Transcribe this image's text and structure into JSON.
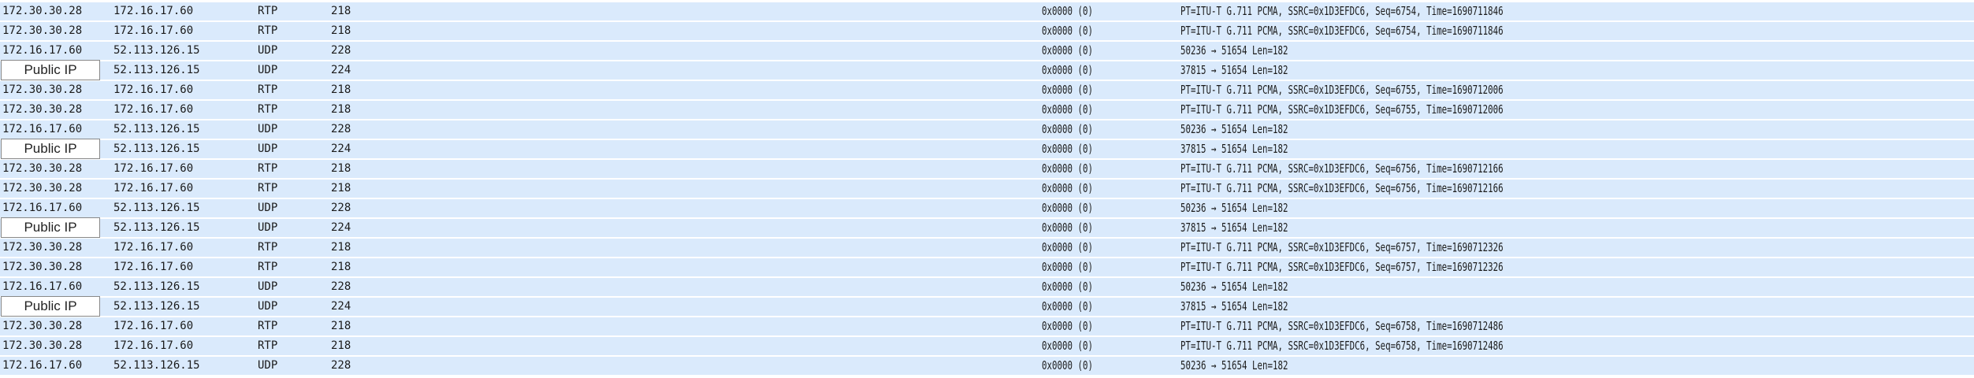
{
  "redaction_label": "Public IP",
  "rows": [
    {
      "src": "172.30.30.28",
      "dst": "172.16.17.60",
      "proto": "RTP",
      "len": "218",
      "flags": "0x0000 (0)",
      "info": "PT=ITU-T G.711 PCMA, SSRC=0x1D3EFDC6, Seq=6754, Time=1690711846",
      "masked": false
    },
    {
      "src": "172.30.30.28",
      "dst": "172.16.17.60",
      "proto": "RTP",
      "len": "218",
      "flags": "0x0000 (0)",
      "info": "PT=ITU-T G.711 PCMA, SSRC=0x1D3EFDC6, Seq=6754, Time=1690711846",
      "masked": false
    },
    {
      "src": "172.16.17.60",
      "dst": "52.113.126.15",
      "proto": "UDP",
      "len": "228",
      "flags": "0x0000 (0)",
      "info": "50236 → 51654 Len=182",
      "masked": false
    },
    {
      "src": "",
      "dst": "52.113.126.15",
      "proto": "UDP",
      "len": "224",
      "flags": "0x0000 (0)",
      "info": "37815 → 51654 Len=182",
      "masked": true
    },
    {
      "src": "172.30.30.28",
      "dst": "172.16.17.60",
      "proto": "RTP",
      "len": "218",
      "flags": "0x0000 (0)",
      "info": "PT=ITU-T G.711 PCMA, SSRC=0x1D3EFDC6, Seq=6755, Time=1690712006",
      "masked": false
    },
    {
      "src": "172.30.30.28",
      "dst": "172.16.17.60",
      "proto": "RTP",
      "len": "218",
      "flags": "0x0000 (0)",
      "info": "PT=ITU-T G.711 PCMA, SSRC=0x1D3EFDC6, Seq=6755, Time=1690712006",
      "masked": false
    },
    {
      "src": "172.16.17.60",
      "dst": "52.113.126.15",
      "proto": "UDP",
      "len": "228",
      "flags": "0x0000 (0)",
      "info": "50236 → 51654 Len=182",
      "masked": false
    },
    {
      "src": "",
      "dst": "52.113.126.15",
      "proto": "UDP",
      "len": "224",
      "flags": "0x0000 (0)",
      "info": "37815 → 51654 Len=182",
      "masked": true
    },
    {
      "src": "172.30.30.28",
      "dst": "172.16.17.60",
      "proto": "RTP",
      "len": "218",
      "flags": "0x0000 (0)",
      "info": "PT=ITU-T G.711 PCMA, SSRC=0x1D3EFDC6, Seq=6756, Time=1690712166",
      "masked": false
    },
    {
      "src": "172.30.30.28",
      "dst": "172.16.17.60",
      "proto": "RTP",
      "len": "218",
      "flags": "0x0000 (0)",
      "info": "PT=ITU-T G.711 PCMA, SSRC=0x1D3EFDC6, Seq=6756, Time=1690712166",
      "masked": false
    },
    {
      "src": "172.16.17.60",
      "dst": "52.113.126.15",
      "proto": "UDP",
      "len": "228",
      "flags": "0x0000 (0)",
      "info": "50236 → 51654 Len=182",
      "masked": false
    },
    {
      "src": "",
      "dst": "52.113.126.15",
      "proto": "UDP",
      "len": "224",
      "flags": "0x0000 (0)",
      "info": "37815 → 51654 Len=182",
      "masked": true
    },
    {
      "src": "172.30.30.28",
      "dst": "172.16.17.60",
      "proto": "RTP",
      "len": "218",
      "flags": "0x0000 (0)",
      "info": "PT=ITU-T G.711 PCMA, SSRC=0x1D3EFDC6, Seq=6757, Time=1690712326",
      "masked": false
    },
    {
      "src": "172.30.30.28",
      "dst": "172.16.17.60",
      "proto": "RTP",
      "len": "218",
      "flags": "0x0000 (0)",
      "info": "PT=ITU-T G.711 PCMA, SSRC=0x1D3EFDC6, Seq=6757, Time=1690712326",
      "masked": false
    },
    {
      "src": "172.16.17.60",
      "dst": "52.113.126.15",
      "proto": "UDP",
      "len": "228",
      "flags": "0x0000 (0)",
      "info": "50236 → 51654 Len=182",
      "masked": false
    },
    {
      "src": "",
      "dst": "52.113.126.15",
      "proto": "UDP",
      "len": "224",
      "flags": "0x0000 (0)",
      "info": "37815 → 51654 Len=182",
      "masked": true
    },
    {
      "src": "172.30.30.28",
      "dst": "172.16.17.60",
      "proto": "RTP",
      "len": "218",
      "flags": "0x0000 (0)",
      "info": "PT=ITU-T G.711 PCMA, SSRC=0x1D3EFDC6, Seq=6758, Time=1690712486",
      "masked": false
    },
    {
      "src": "172.30.30.28",
      "dst": "172.16.17.60",
      "proto": "RTP",
      "len": "218",
      "flags": "0x0000 (0)",
      "info": "PT=ITU-T G.711 PCMA, SSRC=0x1D3EFDC6, Seq=6758, Time=1690712486",
      "masked": false
    },
    {
      "src": "172.16.17.60",
      "dst": "52.113.126.15",
      "proto": "UDP",
      "len": "228",
      "flags": "0x0000 (0)",
      "info": "50236 → 51654 Len=182",
      "masked": false
    }
  ]
}
